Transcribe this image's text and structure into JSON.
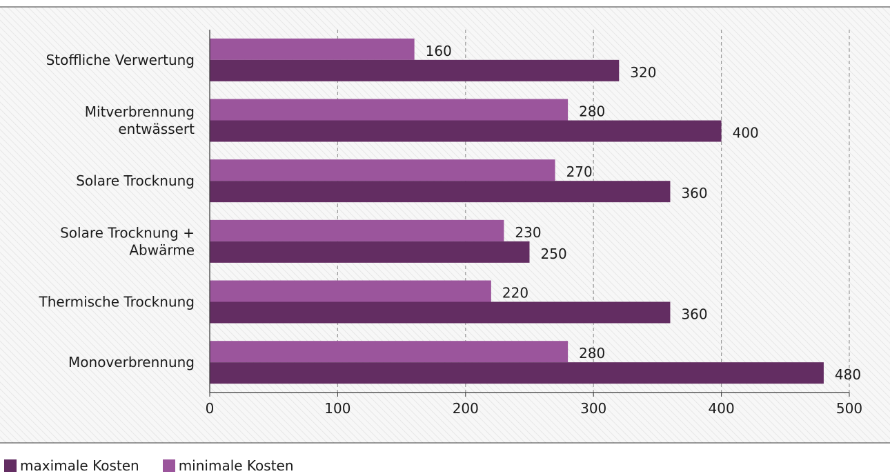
{
  "chart_data": {
    "type": "bar",
    "orientation": "horizontal",
    "categories": [
      [
        "Stoffliche Verwertung"
      ],
      [
        "Mitverbrennung",
        "entwässert"
      ],
      [
        "Solare Trocknung"
      ],
      [
        "Solare Trocknung +",
        "Abwärme"
      ],
      [
        "Thermische Trocknung"
      ],
      [
        "Monoverbrennung"
      ]
    ],
    "series": [
      {
        "name": "minimale Kosten",
        "color": "#9b559c",
        "values": [
          160,
          280,
          270,
          230,
          220,
          280
        ]
      },
      {
        "name": "maximale Kosten",
        "color": "#632d62",
        "values": [
          320,
          400,
          360,
          250,
          360,
          480
        ]
      }
    ],
    "xlim": [
      0,
      500
    ],
    "xticks": [
      0,
      100,
      200,
      300,
      400,
      500
    ],
    "grid": "vertical dashed",
    "legend": "bottom-left",
    "legend_order": [
      "maximale Kosten",
      "minimale Kosten"
    ],
    "background": "hatched light gray"
  }
}
